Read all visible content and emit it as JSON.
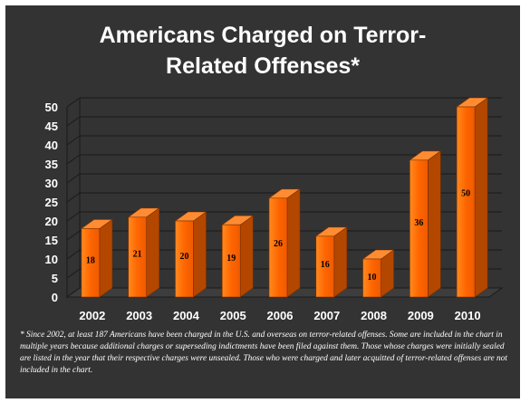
{
  "chart_data": {
    "type": "bar",
    "title_lines": [
      "Americans Charged on Terror-",
      "Related Offenses*"
    ],
    "categories": [
      "2002",
      "2003",
      "2004",
      "2005",
      "2006",
      "2007",
      "2008",
      "2009",
      "2010"
    ],
    "values": [
      18,
      21,
      20,
      19,
      26,
      16,
      10,
      36,
      50
    ],
    "data_labels": [
      "18",
      "21",
      "20",
      "19",
      "26",
      "16",
      "10",
      "36",
      "50"
    ],
    "yticks": [
      "0",
      "5",
      "10",
      "15",
      "20",
      "25",
      "30",
      "35",
      "40",
      "45",
      "50"
    ],
    "ylim": [
      0,
      50
    ],
    "grid": true,
    "legend": "none",
    "bar_color": "#FF6600",
    "footnote": "* Since 2002, at least 187 Americans have been charged in the U.S. and overseas on terror-related offenses. Some are included in the chart in multiple years because additional charges or superseding indictments have been filed against them. Those whose charges were initially sealed are listed in the year that their respective charges were unsealed. Those who were charged and later acquitted of terror-related offenses are not included in the chart."
  }
}
